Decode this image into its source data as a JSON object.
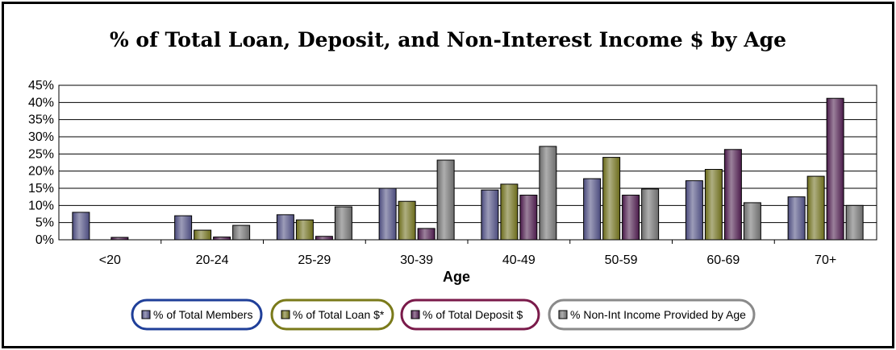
{
  "chart_data": {
    "type": "bar",
    "title": "% of Total Loan, Deposit, and Non-Interest Income $ by Age",
    "xlabel": "Age",
    "ylabel": "",
    "categories": [
      "<20",
      "20-24",
      "25-29",
      "30-39",
      "40-49",
      "50-59",
      "60-69",
      "70+"
    ],
    "ylim": [
      0,
      45
    ],
    "y_ticks": [
      "0%",
      "5%",
      "10%",
      "15%",
      "20%",
      "25%",
      "30%",
      "35%",
      "40%",
      "45%"
    ],
    "grid": true,
    "legend_position": "bottom",
    "series": [
      {
        "name": "% of Total Members",
        "color": "#4b4b7d",
        "border": "#1f3f99",
        "values": [
          8,
          7,
          7.3,
          15,
          14.5,
          17.8,
          17.2,
          12.5
        ]
      },
      {
        "name": "% of Total Loan $*",
        "color": "#6b6b1a",
        "border": "#7a7a1a",
        "values": [
          0,
          2.8,
          5.8,
          11.2,
          16.2,
          24,
          20.5,
          18.5
        ]
      },
      {
        "name": "% of Total Deposit $",
        "color": "#4a1a4a",
        "border": "#7a1a4a",
        "values": [
          0.7,
          0.8,
          1,
          3.3,
          13,
          13,
          26.3,
          41.2
        ]
      },
      {
        "name": "% Non-Int Income Provided by Age",
        "color": "#6b6b6b",
        "border": "#8a8a8a",
        "values": [
          0,
          4.2,
          9.6,
          23.2,
          27.2,
          14.8,
          10.8,
          10
        ]
      }
    ]
  }
}
